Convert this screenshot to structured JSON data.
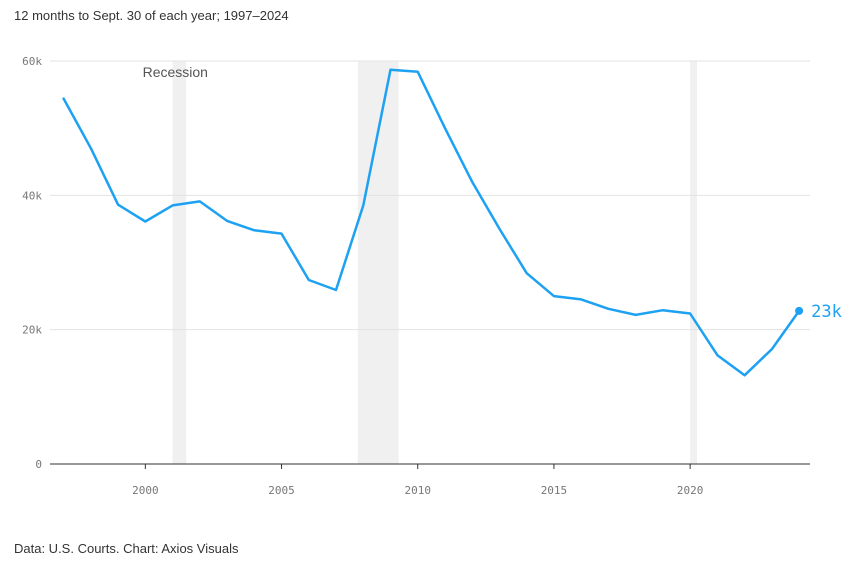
{
  "subtitle": "12 months to Sept. 30 of each year; 1997–2024",
  "source": "Data: U.S. Courts. Chart: Axios Visuals",
  "colors": {
    "line": "#1da1f2",
    "recession": "#f0f0f0",
    "grid": "#e3e3e3",
    "axis": "#333333"
  },
  "chart_data": {
    "type": "line",
    "title": "",
    "xlabel": "",
    "ylabel": "",
    "xlim": [
      1996.5,
      2024.4
    ],
    "ylim": [
      0,
      60000
    ],
    "grid": true,
    "x": [
      1997,
      1998,
      1999,
      2000,
      2001,
      2002,
      2003,
      2004,
      2005,
      2006,
      2007,
      2008,
      2009,
      2010,
      2011,
      2012,
      2013,
      2014,
      2015,
      2016,
      2017,
      2018,
      2019,
      2020,
      2021,
      2022,
      2023,
      2024
    ],
    "series": [
      {
        "values": [
          54400,
          47000,
          38600,
          36100,
          38500,
          39100,
          36200,
          34800,
          34300,
          27400,
          25900,
          38500,
          58700,
          58400,
          50000,
          42000,
          35000,
          28400,
          25000,
          24500,
          23100,
          22200,
          22900,
          22400,
          16200,
          13200,
          17100,
          22800
        ]
      }
    ],
    "yticks": [
      {
        "value": 0,
        "label": "0"
      },
      {
        "value": 20000,
        "label": "20k"
      },
      {
        "value": 40000,
        "label": "40k"
      },
      {
        "value": 60000,
        "label": "60k"
      }
    ],
    "xticks": [
      {
        "value": 2000,
        "label": "2000"
      },
      {
        "value": 2005,
        "label": "2005"
      },
      {
        "value": 2010,
        "label": "2010"
      },
      {
        "value": 2015,
        "label": "2015"
      },
      {
        "value": 2020,
        "label": "2020"
      }
    ],
    "recessions": [
      {
        "start": 2001.0,
        "end": 2001.5
      },
      {
        "start": 2007.8,
        "end": 2009.3
      },
      {
        "start": 2020.0,
        "end": 2020.25
      }
    ],
    "recession_label": "Recession",
    "end_label": "23k"
  }
}
